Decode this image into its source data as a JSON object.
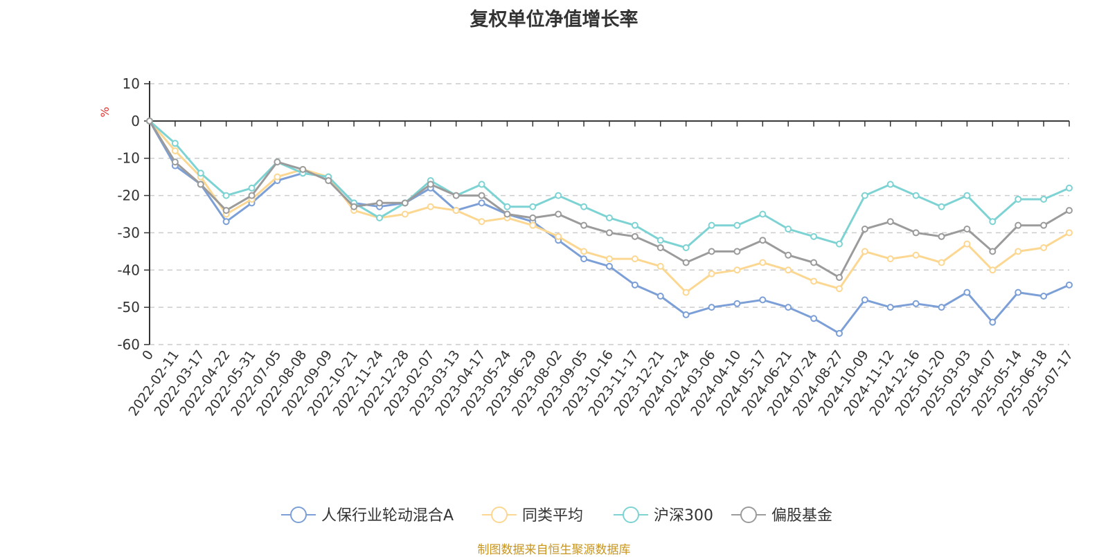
{
  "chart_data": {
    "type": "line",
    "title": "复权单位净值增长率",
    "ylabel_unit": "%",
    "ylim": [
      -60,
      10
    ],
    "y_ticks": [
      10,
      0,
      -10,
      -20,
      -30,
      -40,
      -50,
      -60
    ],
    "x_tick_labels": [
      "0",
      "2022-02-11",
      "2022-03-17",
      "2022-04-22",
      "2022-05-31",
      "2022-07-05",
      "2022-08-08",
      "2022-09-09",
      "2022-10-21",
      "2022-11-24",
      "2022-12-28",
      "2023-02-07",
      "2023-03-13",
      "2023-04-17",
      "2023-05-24",
      "2023-06-29",
      "2023-08-02",
      "2023-09-05",
      "2023-10-16",
      "2023-11-17",
      "2023-12-21",
      "2024-01-24",
      "2024-03-06",
      "2024-04-10",
      "2024-05-17",
      "2024-06-21",
      "2024-07-24",
      "2024-08-27",
      "2024-10-09",
      "2024-11-12",
      "2024-12-16",
      "2025-01-20",
      "2025-03-03",
      "2025-04-07",
      "2025-05-14",
      "2025-06-18",
      "2025-07-17"
    ],
    "grid": "horizontal-dashed",
    "legend_position": "bottom",
    "series": [
      {
        "name": "人保行业轮动混合A",
        "color": "#7b9fd6",
        "values": [
          0,
          -12,
          -17,
          -27,
          -22,
          -16,
          -14,
          -15,
          -22,
          -23,
          -22,
          -18,
          -24,
          -22,
          -25,
          -27,
          -32,
          -37,
          -39,
          -44,
          -47,
          -52,
          -50,
          -49,
          -48,
          -50,
          -53,
          -57,
          -48,
          -50,
          -49,
          -50,
          -46,
          -54,
          -46,
          -47,
          -44
        ]
      },
      {
        "name": "同类平均",
        "color": "#fcd791",
        "values": [
          0,
          -8,
          -15,
          -25,
          -21,
          -15,
          -13,
          -15,
          -24,
          -26,
          -25,
          -23,
          -24,
          -27,
          -26,
          -28,
          -31,
          -35,
          -37,
          -37,
          -39,
          -46,
          -41,
          -40,
          -38,
          -40,
          -43,
          -45,
          -35,
          -37,
          -36,
          -38,
          -33,
          -40,
          -35,
          -34,
          -30
        ]
      },
      {
        "name": "沪深300",
        "color": "#7dd3d3",
        "values": [
          0,
          -6,
          -14,
          -20,
          -18,
          -11,
          -14,
          -15,
          -22,
          -26,
          -22,
          -16,
          -20,
          -17,
          -23,
          -23,
          -20,
          -23,
          -26,
          -28,
          -32,
          -34,
          -28,
          -28,
          -25,
          -29,
          -31,
          -33,
          -20,
          -17,
          -20,
          -23,
          -20,
          -27,
          -21,
          -21,
          -18
        ]
      },
      {
        "name": "偏股基金",
        "color": "#9b9b9b",
        "values": [
          0,
          -11,
          -17,
          -24,
          -20,
          -11,
          -13,
          -16,
          -23,
          -22,
          -22,
          -17,
          -20,
          -20,
          -25,
          -26,
          -25,
          -28,
          -30,
          -31,
          -34,
          -38,
          -35,
          -35,
          -32,
          -36,
          -38,
          -42,
          -29,
          -27,
          -30,
          -31,
          -29,
          -35,
          -28,
          -28,
          -24
        ]
      }
    ]
  },
  "source_note": "制图数据来自恒生聚源数据库"
}
